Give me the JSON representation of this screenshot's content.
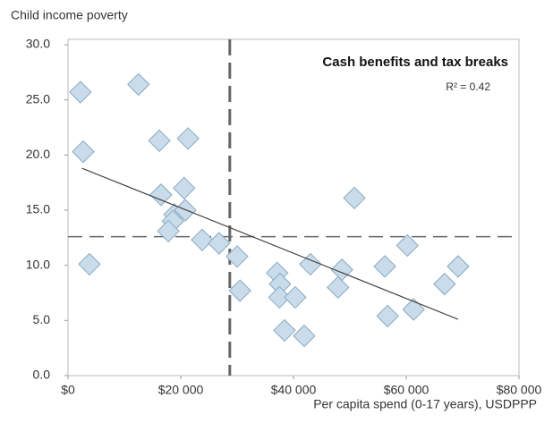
{
  "chart_data": {
    "type": "scatter",
    "y_label": "Child income poverty",
    "x_label": "Per capita spend (0-17 years), USDPPP",
    "annotation": "Cash benefits and tax breaks",
    "r_squared_label": "R² = 0.42",
    "x": [
      2200,
      2700,
      3800,
      12500,
      16200,
      21300,
      16500,
      20600,
      18900,
      18600,
      17800,
      20800,
      23800,
      26800,
      30000,
      30500,
      37100,
      37600,
      37500,
      40300,
      38400,
      41900,
      43000,
      48600,
      47900,
      50800,
      56200,
      56700,
      60200,
      61300,
      66800,
      69200
    ],
    "values": [
      25.7,
      20.3,
      10.1,
      26.4,
      21.3,
      21.5,
      16.4,
      17.0,
      14.6,
      14.0,
      13.1,
      15.0,
      12.3,
      12.0,
      10.8,
      7.7,
      9.3,
      8.3,
      7.1,
      7.1,
      4.1,
      3.6,
      10.1,
      9.6,
      8.0,
      16.1,
      9.9,
      5.4,
      11.8,
      6.0,
      8.3,
      9.9
    ],
    "color": "#c9dcea",
    "trendline": {
      "x": [
        2500,
        69200
      ],
      "y": [
        18.8,
        5.1
      ]
    },
    "reference_lines": {
      "x": 28700,
      "y": 12.6
    },
    "xlim": [
      0,
      80000
    ],
    "ylim": [
      0,
      30
    ],
    "xticks": [
      {
        "value": 0,
        "label": "$0"
      },
      {
        "value": 20000,
        "label": "$20 000"
      },
      {
        "value": 40000,
        "label": "$40 000"
      },
      {
        "value": 60000,
        "label": "$60 000"
      },
      {
        "value": 80000,
        "label": "$80 000"
      }
    ],
    "yticks": [
      {
        "value": 0,
        "label": "0.0"
      },
      {
        "value": 5,
        "label": "5.0"
      },
      {
        "value": 10,
        "label": "10.0"
      },
      {
        "value": 15,
        "label": "15.0"
      },
      {
        "value": 20,
        "label": "20.0"
      },
      {
        "value": 25,
        "label": "25.0"
      },
      {
        "value": 30,
        "label": "30.0"
      }
    ]
  }
}
